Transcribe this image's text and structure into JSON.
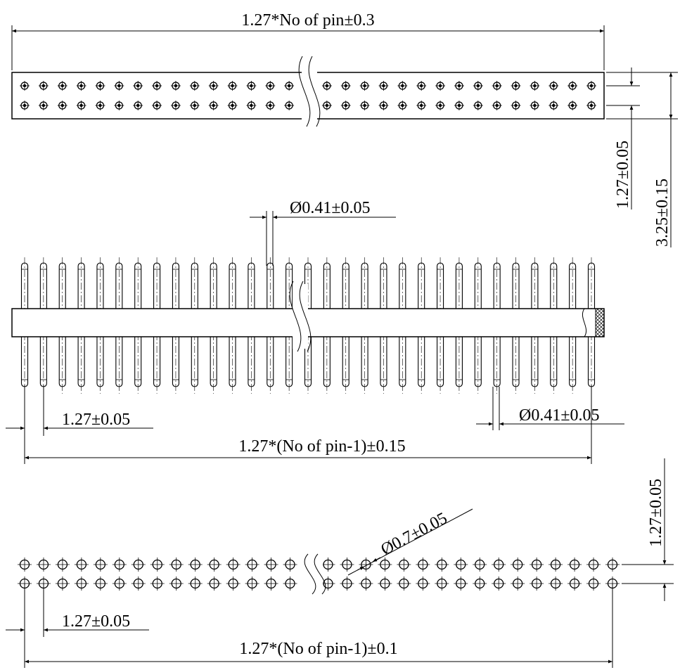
{
  "colors": {
    "line": "#000000",
    "background": "#ffffff"
  },
  "top_view": {
    "overall_length_label": "1.27*No of pin±0.3",
    "row_pitch_label": "1.27±0.05",
    "width_label": "3.25±0.15"
  },
  "side_view": {
    "pin_diameter_top_label": "Ø0.41±0.05",
    "pin_diameter_bottom_label": "Ø0.41±0.05",
    "pitch_label": "1.27±0.05",
    "span_label": "1.27*(No of pin-1)±0.15"
  },
  "footprint": {
    "row_pitch_label": "1.27±0.05",
    "hole_diameter_label": "Ø0.7±0.05",
    "pitch_label": "1.27±0.05",
    "span_label": "1.27*(No of pin-1)±0.1"
  }
}
